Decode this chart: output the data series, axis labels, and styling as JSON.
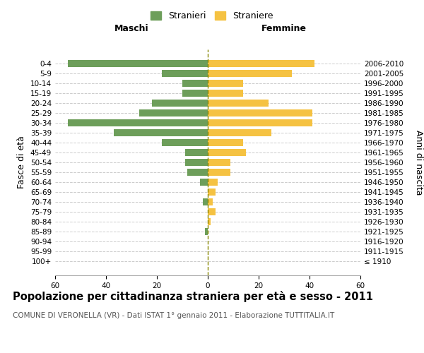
{
  "age_groups": [
    "100+",
    "95-99",
    "90-94",
    "85-89",
    "80-84",
    "75-79",
    "70-74",
    "65-69",
    "60-64",
    "55-59",
    "50-54",
    "45-49",
    "40-44",
    "35-39",
    "30-34",
    "25-29",
    "20-24",
    "15-19",
    "10-14",
    "5-9",
    "0-4"
  ],
  "birth_years": [
    "≤ 1910",
    "1911-1915",
    "1916-1920",
    "1921-1925",
    "1926-1930",
    "1931-1935",
    "1936-1940",
    "1941-1945",
    "1946-1950",
    "1951-1955",
    "1956-1960",
    "1961-1965",
    "1966-1970",
    "1971-1975",
    "1976-1980",
    "1981-1985",
    "1986-1990",
    "1991-1995",
    "1996-2000",
    "2001-2005",
    "2006-2010"
  ],
  "males": [
    0,
    0,
    0,
    1,
    0,
    0,
    2,
    0,
    3,
    8,
    9,
    9,
    18,
    37,
    55,
    27,
    22,
    10,
    10,
    18,
    55
  ],
  "females": [
    0,
    0,
    0,
    0,
    1,
    3,
    2,
    3,
    4,
    9,
    9,
    15,
    14,
    25,
    41,
    41,
    24,
    14,
    14,
    33,
    42
  ],
  "male_color": "#6d9e5a",
  "female_color": "#f5c242",
  "background_color": "#ffffff",
  "grid_color": "#cccccc",
  "dashed_line_color": "#888800",
  "title": "Popolazione per cittadinanza straniera per età e sesso - 2011",
  "subtitle": "COMUNE DI VERONELLA (VR) - Dati ISTAT 1° gennaio 2011 - Elaborazione TUTTITALIA.IT",
  "xlabel_left": "Maschi",
  "xlabel_right": "Femmine",
  "ylabel_left": "Fasce di età",
  "ylabel_right": "Anni di nascita",
  "legend_males": "Stranieri",
  "legend_females": "Straniere",
  "xlim": 60,
  "title_fontsize": 10.5,
  "subtitle_fontsize": 7.5,
  "label_fontsize": 9,
  "tick_fontsize": 7.5
}
